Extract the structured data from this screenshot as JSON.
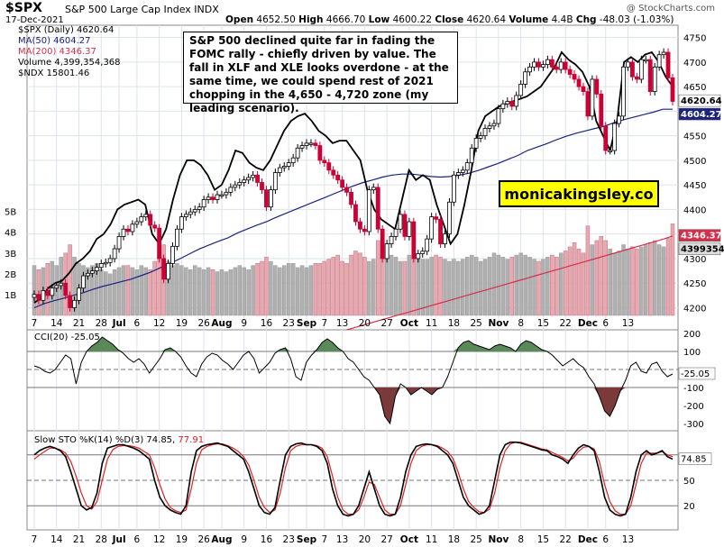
{
  "header": {
    "symbol": "$SPX",
    "name": "S&P 500 Large Cap Index INDX",
    "watermark": "@ StockCharts.com",
    "date": "17-Dec-2021",
    "open_label": "Open",
    "open": "4652.50",
    "high_label": "High",
    "high": "4666.70",
    "low_label": "Low",
    "low": "4600.22",
    "close_label": "Close",
    "close": "4620.64",
    "volume_label": "Volume",
    "volume": "4.4B",
    "chg_label": "Chg",
    "chg": "-48.03 (-1.03%)"
  },
  "legend": {
    "spx": "$SPX (Daily) 4620.64",
    "ma50": "MA(50) 4604.27",
    "ma200": "MA(200) 4346.37",
    "volume": "Volume 4,399,354,368",
    "ndx": "$NDX 15801.46"
  },
  "annotation": "S&P 500 declined quite far in fading the FOMC rally - chiefly driven by value. The fall in XLF and XLE looks overdone - at the same time, we could spend rest of 2021 chopping in the 4,650 - 4,720 zone (my leading scenario).",
  "brand": "monicakingsley.co",
  "colors": {
    "up": "#ffffff",
    "down": "#cc0033",
    "ma50": "#1a237e",
    "ma200": "#d32f4a",
    "ndx": "#000000",
    "vol_up": "#b0b0b0",
    "vol_down": "#e8a8b0",
    "cci_pos": "#5a8a5a",
    "cci_neg": "#7a3a3a",
    "k_line": "#000000",
    "d_line": "#e02020"
  },
  "price_labels": {
    "close": "4620.64",
    "ma50": "4604.27",
    "ma200": "4346.37",
    "volume": "4399354"
  },
  "cci_legend": "CCI(20) -25.05",
  "cci_value_label": "-25.05",
  "sto_legend_prefix": "Slow STO %K(14) %D(3) 74.85,",
  "sto_legend_d": "77.91",
  "sto_value_label": "74.85",
  "chart_data": {
    "type": "candlestick",
    "x_ticks": [
      "7",
      "14",
      "21",
      "28",
      "Jul",
      "6",
      "12",
      "19",
      "26",
      "Aug",
      "9",
      "16",
      "23",
      "Sep",
      "7",
      "13",
      "20",
      "27",
      "Oct",
      "11",
      "18",
      "25",
      "Nov",
      "8",
      "15",
      "22",
      "Dec",
      "6",
      "13"
    ],
    "x_tick_index": [
      0,
      5,
      10,
      15,
      19,
      23,
      28,
      33,
      38,
      42,
      47,
      52,
      57,
      61,
      65,
      69,
      74,
      79,
      84,
      89,
      94,
      99,
      104,
      109,
      114,
      119,
      124,
      128,
      133
    ],
    "price_axis": {
      "ylim": [
        4155,
        4775
      ],
      "ticks": [
        4200,
        4250,
        4300,
        4350,
        4400,
        4450,
        4500,
        4550,
        4600,
        4650,
        4700,
        4750
      ]
    },
    "volume_axis": {
      "ticks": [
        "1B",
        "2B",
        "3B",
        "4B",
        "5B"
      ],
      "tick_values": [
        1,
        2,
        3,
        4,
        5
      ]
    },
    "spx_close": [
      4227,
      4215,
      4235,
      4225,
      4240,
      4245,
      4250,
      4225,
      4200,
      4215,
      4240,
      4265,
      4270,
      4275,
      4282,
      4290,
      4292,
      4300,
      4320,
      4345,
      4360,
      4355,
      4370,
      4375,
      4385,
      4390,
      4368,
      4362,
      4300,
      4258,
      4290,
      4325,
      4360,
      4385,
      4390,
      4395,
      4400,
      4405,
      4420,
      4425,
      4420,
      4430,
      4430,
      4435,
      4445,
      4450,
      4455,
      4460,
      4465,
      4470,
      4455,
      4440,
      4405,
      4440,
      4475,
      4485,
      4488,
      4495,
      4505,
      4525,
      4530,
      4535,
      4535,
      4530,
      4500,
      4495,
      4480,
      4470,
      4460,
      4445,
      4435,
      4410,
      4375,
      4360,
      4355,
      4440,
      4445,
      4360,
      4300,
      4330,
      4345,
      4360,
      4390,
      4345,
      4375,
      4300,
      4310,
      4315,
      4340,
      4385,
      4380,
      4330,
      4350,
      4415,
      4470,
      4475,
      4480,
      4495,
      4525,
      4545,
      4550,
      4565,
      4570,
      4575,
      4605,
      4615,
      4620,
      4610,
      4632,
      4655,
      4680,
      4690,
      4700,
      4690,
      4695,
      4705,
      4690,
      4685,
      4700,
      4685,
      4675,
      4665,
      4650,
      4640,
      4590,
      4665,
      4635,
      4570,
      4520,
      4520,
      4575,
      4590,
      4690,
      4700,
      4670,
      4665,
      4705,
      4705,
      4640,
      4690,
      4715,
      4720,
      4668,
      4620
    ],
    "ma50": [
      4200,
      4208,
      4214,
      4219,
      4225,
      4230,
      4237,
      4243,
      4248,
      4253,
      4258,
      4265,
      4272,
      4281,
      4290,
      4299,
      4309,
      4319,
      4327,
      4335,
      4342,
      4352,
      4360,
      4368,
      4375,
      4384,
      4392,
      4400,
      4408,
      4416,
      4424,
      4432,
      4440,
      4448,
      4455,
      4460,
      4466,
      4470,
      4472,
      4472,
      4470,
      4467,
      4466,
      4467,
      4470,
      4474,
      4480,
      4487,
      4494,
      4502,
      4510,
      4520,
      4527,
      4534,
      4542,
      4549,
      4555,
      4560,
      4565,
      4570,
      4577,
      4583,
      4588,
      4593,
      4598,
      4604,
      4604
    ],
    "ma50_x_start": 0,
    "ma50_step": 2.2,
    "ma200": [
      4155,
      4160,
      4165,
      4170,
      4175,
      4180,
      4185,
      4190,
      4195,
      4200,
      4205,
      4210,
      4215,
      4220,
      4225,
      4230,
      4235,
      4240,
      4245,
      4250,
      4255,
      4260,
      4265,
      4270,
      4275,
      4280,
      4285,
      4290,
      4295,
      4300,
      4305,
      4310,
      4315,
      4320,
      4325,
      4330,
      4335,
      4340,
      4346
    ],
    "ndx": [
      4210,
      4220,
      4240,
      4250,
      4255,
      4270,
      4290,
      4300,
      4315,
      4340,
      4350,
      4370,
      4400,
      4410,
      4415,
      4420,
      4410,
      4350,
      4330,
      4360,
      4420,
      4470,
      4500,
      4500,
      4490,
      4470,
      4440,
      4450,
      4480,
      4520,
      4515,
      4495,
      4485,
      4480,
      4500,
      4530,
      4560,
      4580,
      4590,
      4595,
      4580,
      4560,
      4550,
      4535,
      4540,
      4540,
      4520,
      4500,
      4440,
      4400,
      4380,
      4370,
      4360,
      4420,
      4480,
      4460,
      4470,
      4460,
      4410,
      4370,
      4330,
      4350,
      4410,
      4480,
      4560,
      4590,
      4600,
      4610,
      4615,
      4620,
      4625,
      4630,
      4640,
      4650,
      4670,
      4690,
      4720,
      4705,
      4695,
      4680,
      4650,
      4580,
      4550,
      4520,
      4580,
      4700,
      4710,
      4700,
      4715,
      4720,
      4700,
      4670,
      4650
    ],
    "volume_billions": [
      2.4,
      2.2,
      2.3,
      2.5,
      2.6,
      2.4,
      2.8,
      3.0,
      3.4,
      2.8,
      2.5,
      2.4,
      2.3,
      2.4,
      2.5,
      2.2,
      2.1,
      2.0,
      2.2,
      2.3,
      2.4,
      2.4,
      2.3,
      2.2,
      2.4,
      2.3,
      2.2,
      2.6,
      2.9,
      3.4,
      2.6,
      2.4,
      2.5,
      2.4,
      2.3,
      2.2,
      2.4,
      2.3,
      2.2,
      2.3,
      2.2,
      2.1,
      2.2,
      2.1,
      2.2,
      2.3,
      2.4,
      2.3,
      2.2,
      2.4,
      2.5,
      2.6,
      2.8,
      2.6,
      2.4,
      2.3,
      2.4,
      2.5,
      2.5,
      2.3,
      2.4,
      2.3,
      2.4,
      2.5,
      2.5,
      2.6,
      2.7,
      2.8,
      2.9,
      2.6,
      2.5,
      2.9,
      3.1,
      3.0,
      2.8,
      2.6,
      2.7,
      3.6,
      2.9,
      2.7,
      2.9,
      2.8,
      2.6,
      2.6,
      2.9,
      2.8,
      2.8,
      2.7,
      2.7,
      2.8,
      2.9,
      2.8,
      2.7,
      2.6,
      2.7,
      2.6,
      2.7,
      2.8,
      2.9,
      2.8,
      2.6,
      2.7,
      2.8,
      3.0,
      2.9,
      2.8,
      2.7,
      2.8,
      2.9,
      3.0,
      2.9,
      2.8,
      2.7,
      2.6,
      2.7,
      2.8,
      2.9,
      2.8,
      3.0,
      3.1,
      3.3,
      3.5,
      3.2,
      3.0,
      4.3,
      3.4,
      3.6,
      3.8,
      3.6,
      3.2,
      3.0,
      3.1,
      3.4,
      3.2,
      3.3,
      3.2,
      3.3,
      3.4,
      3.5,
      3.6,
      3.4,
      3.3,
      3.7,
      4.4
    ],
    "cci": {
      "ylim": [
        -340,
        220
      ],
      "ticks": [
        200,
        100,
        -25.05,
        -100,
        -200,
        -300
      ],
      "tick_labels": [
        "200",
        "100",
        "",
        "-100",
        "-200",
        "-300"
      ],
      "values": [
        20,
        10,
        -10,
        -20,
        0,
        40,
        80,
        60,
        -80,
        40,
        100,
        130,
        150,
        180,
        160,
        140,
        110,
        90,
        60,
        40,
        60,
        30,
        -20,
        20,
        60,
        110,
        120,
        100,
        70,
        20,
        -20,
        -40,
        30,
        70,
        90,
        80,
        50,
        30,
        0,
        40,
        80,
        100,
        60,
        -20,
        10,
        40,
        90,
        110,
        120,
        60,
        -40,
        -60,
        40,
        80,
        110,
        150,
        170,
        150,
        120,
        100,
        60,
        40,
        0,
        -40,
        -60,
        -100,
        -140,
        -260,
        -300,
        -150,
        -80,
        -100,
        -140,
        -120,
        -100,
        -120,
        -140,
        -110,
        -100,
        -40,
        40,
        120,
        150,
        160,
        140,
        130,
        120,
        110,
        130,
        140,
        130,
        120,
        100,
        140,
        160,
        150,
        130,
        110,
        100,
        80,
        50,
        20,
        40,
        60,
        30,
        10,
        -40,
        -80,
        -150,
        -230,
        -260,
        -200,
        -120,
        -60,
        20,
        40,
        -10,
        -20,
        30,
        40,
        -10,
        -40,
        -25
      ]
    },
    "slow_sto": {
      "ylim": [
        0,
        100
      ],
      "ticks": [
        80,
        50,
        20
      ],
      "tick_labels": [
        "",
        "50",
        "20"
      ],
      "k": [
        80,
        85,
        88,
        90,
        88,
        85,
        78,
        60,
        40,
        20,
        15,
        18,
        35,
        70,
        88,
        90,
        92,
        92,
        90,
        88,
        85,
        80,
        75,
        50,
        30,
        20,
        15,
        12,
        10,
        20,
        60,
        85,
        90,
        92,
        93,
        94,
        92,
        90,
        85,
        80,
        75,
        60,
        40,
        20,
        12,
        10,
        18,
        50,
        80,
        90,
        93,
        94,
        92,
        92,
        90,
        85,
        70,
        40,
        20,
        10,
        8,
        10,
        20,
        40,
        60,
        40,
        20,
        10,
        8,
        10,
        30,
        60,
        80,
        90,
        92,
        93,
        92,
        90,
        85,
        80,
        70,
        50,
        30,
        20,
        15,
        10,
        12,
        20,
        50,
        80,
        92,
        95,
        95,
        94,
        92,
        90,
        88,
        86,
        85,
        80,
        78,
        75,
        70,
        80,
        88,
        92,
        90,
        85,
        60,
        30,
        15,
        10,
        8,
        10,
        30,
        60,
        80,
        85,
        80,
        82,
        85,
        78,
        75
      ],
      "d": [
        75,
        80,
        84,
        88,
        88,
        86,
        82,
        72,
        55,
        35,
        20,
        16,
        25,
        50,
        75,
        86,
        90,
        91,
        91,
        90,
        88,
        84,
        80,
        65,
        45,
        28,
        18,
        14,
        12,
        15,
        40,
        70,
        86,
        90,
        92,
        93,
        93,
        91,
        88,
        84,
        78,
        68,
        50,
        30,
        18,
        12,
        15,
        35,
        65,
        85,
        90,
        92,
        92,
        92,
        91,
        88,
        78,
        55,
        30,
        15,
        10,
        10,
        15,
        30,
        48,
        45,
        30,
        15,
        10,
        10,
        20,
        45,
        70,
        85,
        90,
        92,
        92,
        91,
        88,
        84,
        76,
        60,
        40,
        25,
        18,
        13,
        12,
        16,
        35,
        65,
        85,
        93,
        95,
        95,
        93,
        91,
        89,
        87,
        86,
        83,
        80,
        77,
        73,
        76,
        84,
        89,
        90,
        87,
        72,
        45,
        25,
        14,
        10,
        10,
        20,
        45,
        70,
        82,
        82,
        82,
        84,
        80,
        78
      ]
    }
  }
}
